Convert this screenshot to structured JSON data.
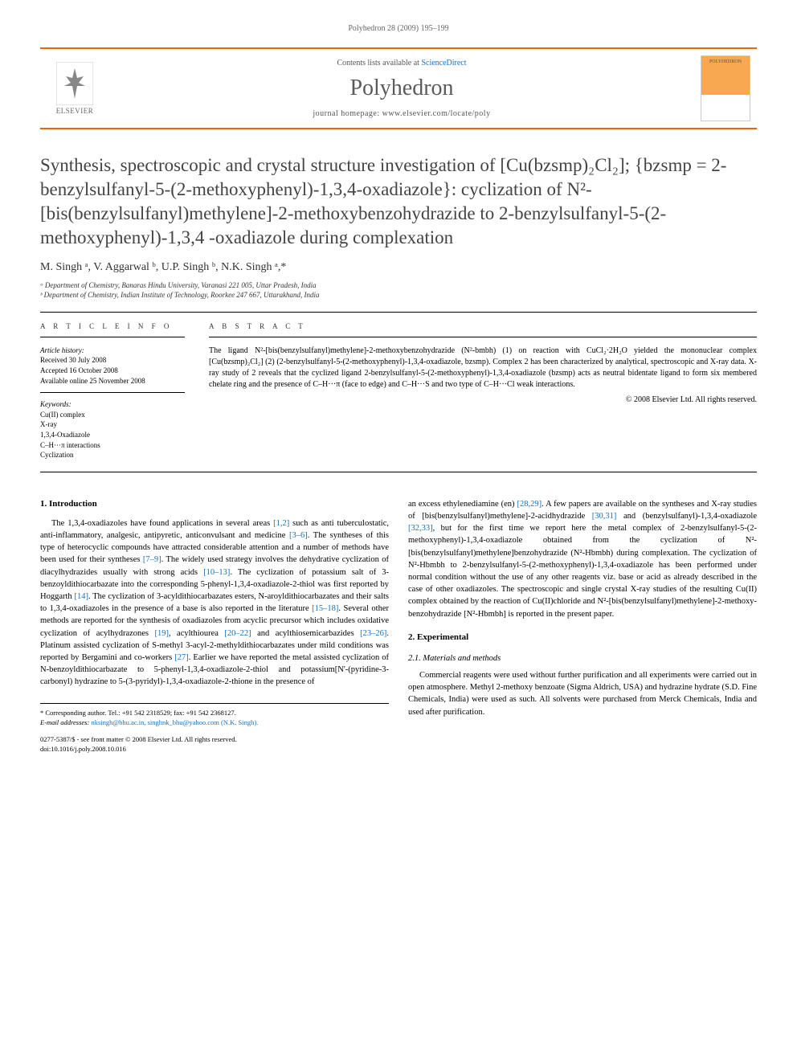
{
  "running_header": "Polyhedron 28 (2009) 195–199",
  "topbar": {
    "contents_prefix": "Contents lists available at ",
    "contents_link": "ScienceDirect",
    "journal": "Polyhedron",
    "homepage_label": "journal homepage: www.elsevier.com/locate/poly",
    "elsevier_label": "ELSEVIER",
    "cover_text": "POLYHEDRON"
  },
  "title_lines": "Synthesis, spectroscopic and crystal structure investigation of [Cu(bzsmp)₂Cl₂]; {bzsmp = 2-benzylsulfanyl-5-(2-methoxyphenyl)-1,3,4-oxadiazole}: cyclization of N²-[bis(benzylsulfanyl)methylene]-2-methoxybenzohydrazide to 2-benzylsulfanyl-5-(2-methoxyphenyl)-1,3,4 -oxadiazole during complexation",
  "authors_html": "M. Singh ᵃ, V. Aggarwal ᵇ, U.P. Singh ᵇ, N.K. Singh ᵃ,*",
  "affiliations": {
    "a": "ᵃ Department of Chemistry, Banaras Hindu University, Varanasi 221 005, Uttar Pradesh, India",
    "b": "ᵇ Department of Chemistry, Indian Institute of Technology, Roorkee 247 667, Uttarakhand, India"
  },
  "article_info": {
    "heading": "A R T I C L E   I N F O",
    "history_label": "Article history:",
    "received": "Received 30 July 2008",
    "accepted": "Accepted 16 October 2008",
    "online": "Available online 25 November 2008",
    "keywords_label": "Keywords:",
    "keywords": [
      "Cu(II) complex",
      "X-ray",
      "1,3,4-Oxadiazole",
      "C–H···π interactions",
      "Cyclization"
    ]
  },
  "abstract": {
    "heading": "A B S T R A C T",
    "text": "The ligand N²-[bis(benzylsulfanyl)methylene]-2-methoxybenzohydrazide (N²-bmbh) (1) on reaction with CuCl₂·2H₂O yielded the mononuclear complex [Cu(bzsmp)₂Cl₂] (2) (2-benzylsulfanyl-5-(2-methoxyphenyl)-1,3,4-oxadiazole, bzsmp). Complex 2 has been characterized by analytical, spectroscopic and X-ray data. X-ray study of 2 reveals that the cyclized ligand 2-benzylsulfanyl-5-(2-methoxyphenyl)-1,3,4-oxadiazole (bzsmp) acts as neutral bidentate ligand to form six membered chelate ring and the presence of C–H···π (face to edge) and C–H···S and two type of C–H···Cl weak interactions.",
    "copyright": "© 2008 Elsevier Ltd. All rights reserved."
  },
  "body": {
    "intro_heading": "1. Introduction",
    "intro_para": "The 1,3,4-oxadiazoles have found applications in several areas [1,2] such as anti tuberculostatic, anti-inflammatory, analgesic, antipyretic, anticonvulsant and medicine [3–6]. The syntheses of this type of heterocyclic compounds have attracted considerable attention and a number of methods have been used for their syntheses [7–9]. The widely used strategy involves the dehydrative cyclization of diacylhydrazides usually with strong acids [10–13]. The cyclization of potassium salt of 3-benzoyldithiocarbazate into the corresponding 5-phenyl-1,3,4-oxadiazole-2-thiol was first reported by Hoggarth [14]. The cyclization of 3-acyldithiocarbazates esters, N-aroyldithiocarbazates and their salts to 1,3,4-oxadiazoles in the presence of a base is also reported in the literature [15–18]. Several other methods are reported for the synthesis of oxadiazoles from acyclic precursor which includes oxidative cyclization of acylhydrazones [19], acylthiourea [20–22] and acylthiosemicarbazides [23–26]. Platinum assisted cyclization of S-methyl 3-acyl-2-methyldithiocarbazates under mild conditions was reported by Bergamini and co-workers [27]. Earlier we have reported the metal assisted cyclization of N-benzoyldithiocarbazate to 5-phenyl-1,3,4-oxadiazole-2-thiol and potassium[N'-(pyridine-3-carbonyl) hydrazine to 5-(3-pyridyl)-1,3,4-oxadiazole-2-thione in the presence of",
    "col2_para": "an excess ethylenediamine (en) [28,29]. A few papers are available on the syntheses and X-ray studies of [bis(benzylsulfanyl)methylene]-2-acidhydrazide [30,31] and (benzylsulfanyl)-1,3,4-oxadiazole [32,33], but for the first time we report here the metal complex of 2-benzylsulfanyl-5-(2-methoxyphenyl)-1,3,4-oxadiazole obtained from the cyclization of N²-[bis(benzylsulfanyl)methylene]benzohydrazide (N²-Hbmbh) during complexation. The cyclization of N²-Hbmbh to 2-benzylsulfanyl-5-(2-methoxyphenyl)-1,3,4-oxadiazole has been performed under normal condition without the use of any other reagents viz. base or acid as already described in the case of other oxadiazoles. The spectroscopic and single crystal X-ray studies of the resulting Cu(II) complex obtained by the reaction of Cu(II)chloride and N²-[bis(benzylsulfanyl)methylene]-2-methoxy-benzohydrazide [N²-Hbmbh] is reported in the present paper.",
    "exp_heading": "2. Experimental",
    "materials_heading": "2.1. Materials and methods",
    "materials_para": "Commercial reagents were used without further purification and all experiments were carried out in open atmosphere. Methyl 2-methoxy benzoate (Sigma Aldrich, USA) and hydrazine hydrate (S.D. Fine Chemicals, India) were used as such. All solvents were purchased from Merck Chemicals, India and used after purification."
  },
  "footnote": {
    "corresponding": "* Corresponding author. Tel.: +91 542 2318529; fax: +91 542 2368127.",
    "email_label": "E-mail addresses:",
    "emails": "nksingh@bhu.ac.in, singhnk_bhu@yahoo.com (N.K. Singh)."
  },
  "footer": {
    "issn": "0277-5387/$ - see front matter © 2008 Elsevier Ltd. All rights reserved.",
    "doi": "doi:10.1016/j.poly.2008.10.016"
  },
  "colors": {
    "accent": "#eb6500",
    "link": "#1a6fb5",
    "text": "#000000",
    "grey_text": "#5b5b5b"
  }
}
